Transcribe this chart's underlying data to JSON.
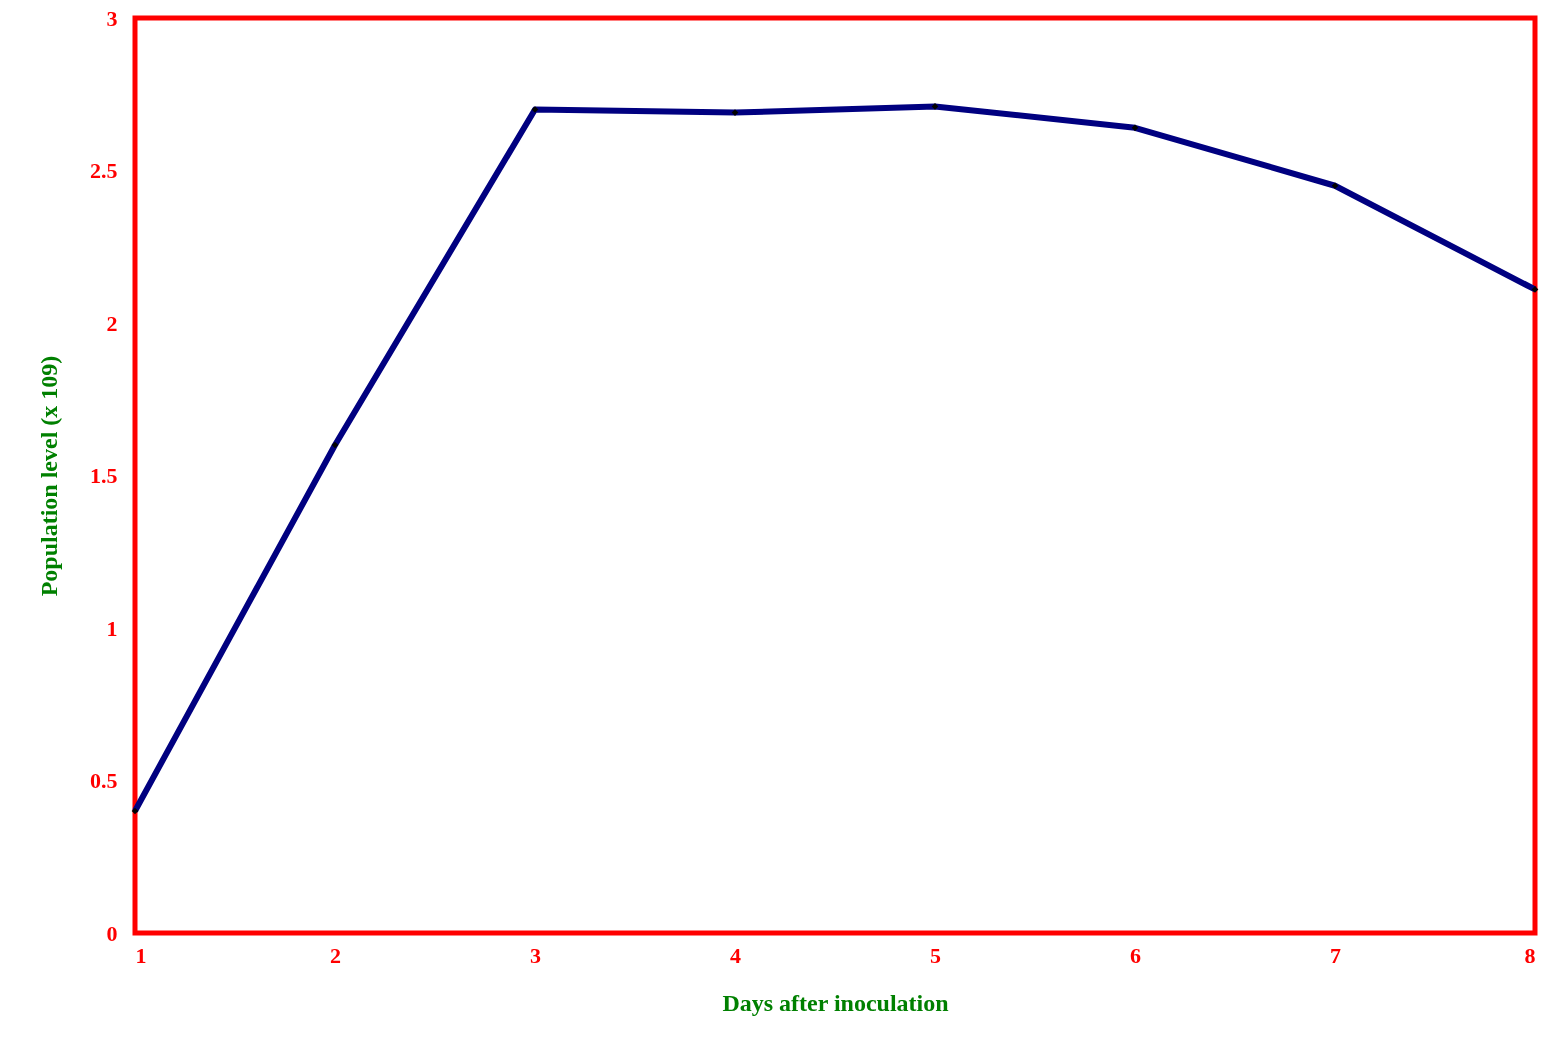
{
  "chart_data": {
    "type": "line",
    "xlabel": "Days after inoculation",
    "ylabel": "Population level (x 109)",
    "x": [
      1,
      2,
      3,
      4,
      5,
      6,
      7,
      8
    ],
    "series": [
      {
        "color": "#000080",
        "values": [
          0.4,
          1.6,
          2.7,
          2.69,
          2.71,
          2.64,
          2.45,
          2.11
        ]
      }
    ],
    "xlim": [
      1,
      8
    ],
    "xticks": [
      1,
      2,
      3,
      4,
      5,
      6,
      7,
      8
    ],
    "ylim": [
      0,
      3
    ],
    "yticks": [
      0,
      0.5,
      1,
      1.5,
      2,
      2.5,
      3
    ],
    "grid": false,
    "marker": "diamond",
    "line_style": "solid"
  }
}
